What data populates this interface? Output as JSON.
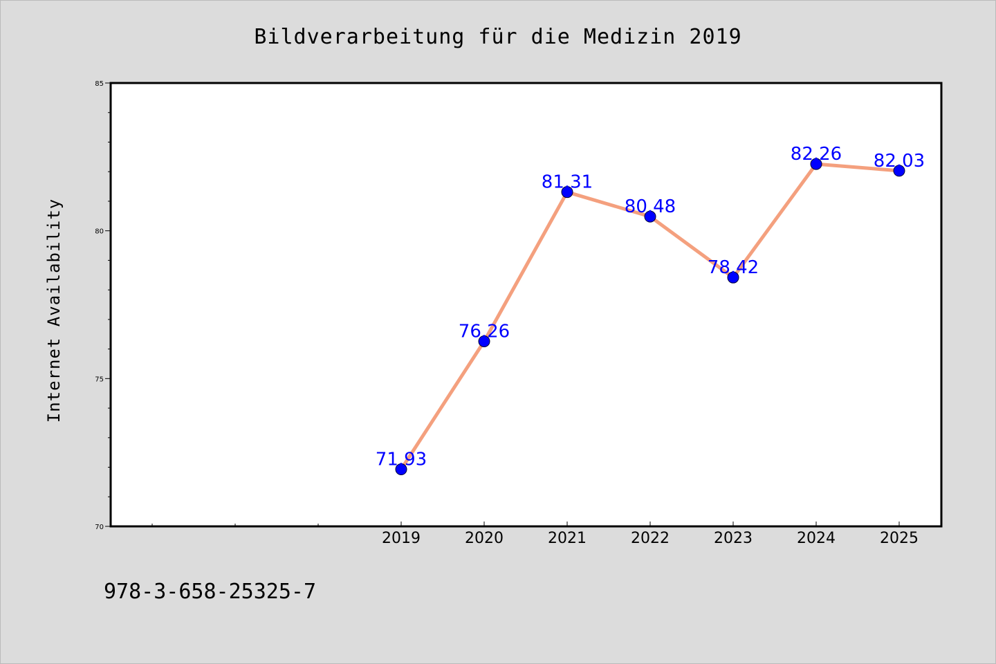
{
  "chart_data": {
    "type": "line",
    "title": "Bildverarbeitung für die Medizin 2019",
    "xlabel": "",
    "ylabel": "Internet Availability",
    "categories": [
      "2019",
      "2020",
      "2021",
      "2022",
      "2023",
      "2024",
      "2025"
    ],
    "values": [
      71.93,
      76.26,
      81.31,
      80.48,
      78.42,
      82.26,
      82.03
    ],
    "data_labels": [
      "71.93",
      "76.26",
      "81.31",
      "80.48",
      "78.42",
      "82.26",
      "82.03"
    ],
    "ylim": [
      70,
      85
    ],
    "yticks": [
      70,
      75,
      80,
      85
    ],
    "ytick_labels": [
      "70",
      "75",
      "80",
      "85"
    ],
    "grid": false,
    "line_color": "#f4a07e",
    "marker_color": "#0000ff",
    "label_color": "#0000ff"
  },
  "footnote": "978-3-658-25325-7"
}
